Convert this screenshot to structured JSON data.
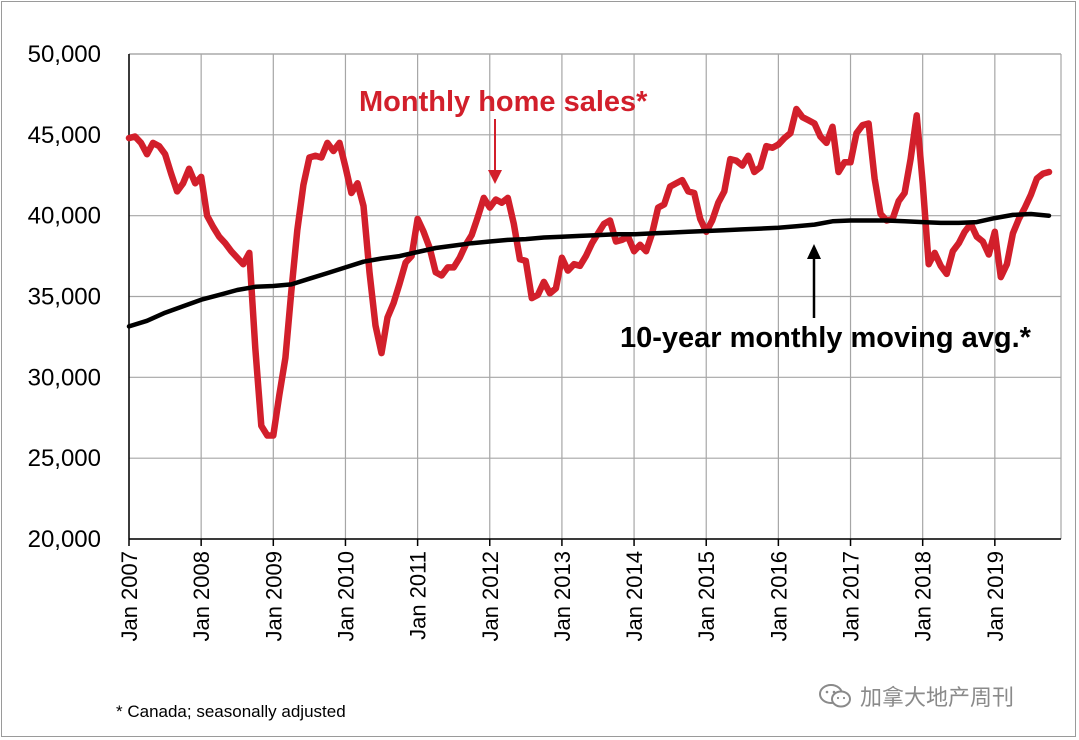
{
  "chart_data": {
    "type": "line",
    "title": "",
    "xlabel": "",
    "ylabel": "",
    "ylim": [
      20000,
      50000
    ],
    "yticks": [
      20000,
      25000,
      30000,
      35000,
      40000,
      45000,
      50000
    ],
    "ytick_labels": [
      "20,000",
      "25,000",
      "30,000",
      "35,000",
      "40,000",
      "45,000",
      "50,000"
    ],
    "xlim": [
      2007.0,
      2019.917
    ],
    "xticks": [
      2007,
      2008,
      2009,
      2010,
      2011,
      2012,
      2013,
      2014,
      2015,
      2016,
      2017,
      2018,
      2019
    ],
    "xtick_labels": [
      "Jan 2007",
      "Jan 2008",
      "Jan 2009",
      "Jan 2010",
      "Jan 2011",
      "Jan 2012",
      "Jan 2013",
      "Jan 2014",
      "Jan 2015",
      "Jan 2016",
      "Jan 2017",
      "Jan 2018",
      "Jan 2019"
    ],
    "grid": true,
    "annotations": {
      "sales": "Monthly home sales*",
      "average": "10-year monthly moving avg.*"
    },
    "footnote": "* Canada; seasonally adjusted",
    "colors": {
      "sales": "#d21f2b",
      "average": "#000000"
    },
    "series": [
      {
        "key": "sales",
        "color": "#d21f2b",
        "points": [
          [
            2007.0,
            44800
          ],
          [
            2007.083,
            44900
          ],
          [
            2007.167,
            44500
          ],
          [
            2007.25,
            43800
          ],
          [
            2007.333,
            44500
          ],
          [
            2007.417,
            44300
          ],
          [
            2007.5,
            43800
          ],
          [
            2007.583,
            42600
          ],
          [
            2007.667,
            41500
          ],
          [
            2007.75,
            42000
          ],
          [
            2007.833,
            42900
          ],
          [
            2007.917,
            42000
          ],
          [
            2008.0,
            42400
          ],
          [
            2008.083,
            40000
          ],
          [
            2008.167,
            39300
          ],
          [
            2008.25,
            38700
          ],
          [
            2008.333,
            38300
          ],
          [
            2008.417,
            37800
          ],
          [
            2008.5,
            37400
          ],
          [
            2008.583,
            37000
          ],
          [
            2008.667,
            37700
          ],
          [
            2008.75,
            31800
          ],
          [
            2008.833,
            27000
          ],
          [
            2008.917,
            26400
          ],
          [
            2009.0,
            26400
          ],
          [
            2009.083,
            28900
          ],
          [
            2009.167,
            31200
          ],
          [
            2009.25,
            35300
          ],
          [
            2009.333,
            39100
          ],
          [
            2009.417,
            41900
          ],
          [
            2009.5,
            43600
          ],
          [
            2009.583,
            43700
          ],
          [
            2009.667,
            43600
          ],
          [
            2009.75,
            44500
          ],
          [
            2009.833,
            44000
          ],
          [
            2009.917,
            44500
          ],
          [
            2010.0,
            43000
          ],
          [
            2010.083,
            41400
          ],
          [
            2010.167,
            42000
          ],
          [
            2010.25,
            40600
          ],
          [
            2010.333,
            36500
          ],
          [
            2010.417,
            33200
          ],
          [
            2010.5,
            31500
          ],
          [
            2010.583,
            33700
          ],
          [
            2010.667,
            34600
          ],
          [
            2010.75,
            35800
          ],
          [
            2010.833,
            37100
          ],
          [
            2010.917,
            37500
          ],
          [
            2011.0,
            39800
          ],
          [
            2011.083,
            39000
          ],
          [
            2011.167,
            38000
          ],
          [
            2011.25,
            36500
          ],
          [
            2011.333,
            36300
          ],
          [
            2011.417,
            36800
          ],
          [
            2011.5,
            36800
          ],
          [
            2011.583,
            37400
          ],
          [
            2011.667,
            38200
          ],
          [
            2011.75,
            38800
          ],
          [
            2011.833,
            39900
          ],
          [
            2011.917,
            41100
          ],
          [
            2012.0,
            40500
          ],
          [
            2012.083,
            41000
          ],
          [
            2012.167,
            40800
          ],
          [
            2012.25,
            41100
          ],
          [
            2012.333,
            39500
          ],
          [
            2012.417,
            37300
          ],
          [
            2012.5,
            37200
          ],
          [
            2012.583,
            34900
          ],
          [
            2012.667,
            35100
          ],
          [
            2012.75,
            35900
          ],
          [
            2012.833,
            35200
          ],
          [
            2012.917,
            35500
          ],
          [
            2013.0,
            37400
          ],
          [
            2013.083,
            36600
          ],
          [
            2013.167,
            37000
          ],
          [
            2013.25,
            36900
          ],
          [
            2013.333,
            37500
          ],
          [
            2013.417,
            38300
          ],
          [
            2013.5,
            38900
          ],
          [
            2013.583,
            39500
          ],
          [
            2013.667,
            39700
          ],
          [
            2013.75,
            38400
          ],
          [
            2013.833,
            38500
          ],
          [
            2013.917,
            38700
          ],
          [
            2014.0,
            37800
          ],
          [
            2014.083,
            38200
          ],
          [
            2014.167,
            37800
          ],
          [
            2014.25,
            38900
          ],
          [
            2014.333,
            40500
          ],
          [
            2014.417,
            40700
          ],
          [
            2014.5,
            41800
          ],
          [
            2014.583,
            42000
          ],
          [
            2014.667,
            42200
          ],
          [
            2014.75,
            41500
          ],
          [
            2014.833,
            41400
          ],
          [
            2014.917,
            39800
          ],
          [
            2015.0,
            39000
          ],
          [
            2015.083,
            39700
          ],
          [
            2015.167,
            40800
          ],
          [
            2015.25,
            41500
          ],
          [
            2015.333,
            43500
          ],
          [
            2015.417,
            43400
          ],
          [
            2015.5,
            43100
          ],
          [
            2015.583,
            43700
          ],
          [
            2015.667,
            42700
          ],
          [
            2015.75,
            43000
          ],
          [
            2015.833,
            44300
          ],
          [
            2015.917,
            44200
          ],
          [
            2016.0,
            44400
          ],
          [
            2016.083,
            44800
          ],
          [
            2016.167,
            45100
          ],
          [
            2016.25,
            46600
          ],
          [
            2016.333,
            46100
          ],
          [
            2016.417,
            45900
          ],
          [
            2016.5,
            45700
          ],
          [
            2016.583,
            44900
          ],
          [
            2016.667,
            44500
          ],
          [
            2016.75,
            45500
          ],
          [
            2016.833,
            42700
          ],
          [
            2016.917,
            43300
          ],
          [
            2017.0,
            43300
          ],
          [
            2017.083,
            45100
          ],
          [
            2017.167,
            45600
          ],
          [
            2017.25,
            45700
          ],
          [
            2017.333,
            42300
          ],
          [
            2017.417,
            40100
          ],
          [
            2017.5,
            39700
          ],
          [
            2017.583,
            39800
          ],
          [
            2017.667,
            40900
          ],
          [
            2017.75,
            41400
          ],
          [
            2017.833,
            43500
          ],
          [
            2017.917,
            46200
          ],
          [
            2018.0,
            42000
          ],
          [
            2018.083,
            37000
          ],
          [
            2018.167,
            37700
          ],
          [
            2018.25,
            36900
          ],
          [
            2018.333,
            36400
          ],
          [
            2018.417,
            37800
          ],
          [
            2018.5,
            38300
          ],
          [
            2018.583,
            39000
          ],
          [
            2018.667,
            39500
          ],
          [
            2018.75,
            38700
          ],
          [
            2018.833,
            38400
          ],
          [
            2018.917,
            37600
          ],
          [
            2019.0,
            39000
          ],
          [
            2019.083,
            36200
          ],
          [
            2019.167,
            37000
          ],
          [
            2019.25,
            38900
          ],
          [
            2019.333,
            39800
          ],
          [
            2019.417,
            40500
          ],
          [
            2019.5,
            41300
          ],
          [
            2019.583,
            42300
          ],
          [
            2019.667,
            42600
          ],
          [
            2019.75,
            42700
          ]
        ]
      },
      {
        "key": "average",
        "color": "#000000",
        "points": [
          [
            2007.0,
            33150
          ],
          [
            2007.25,
            33500
          ],
          [
            2007.5,
            34000
          ],
          [
            2007.75,
            34400
          ],
          [
            2008.0,
            34800
          ],
          [
            2008.25,
            35100
          ],
          [
            2008.5,
            35400
          ],
          [
            2008.75,
            35600
          ],
          [
            2009.0,
            35650
          ],
          [
            2009.25,
            35750
          ],
          [
            2009.5,
            36100
          ],
          [
            2009.75,
            36450
          ],
          [
            2010.0,
            36800
          ],
          [
            2010.25,
            37150
          ],
          [
            2010.5,
            37350
          ],
          [
            2010.75,
            37500
          ],
          [
            2011.0,
            37750
          ],
          [
            2011.25,
            38000
          ],
          [
            2011.5,
            38150
          ],
          [
            2011.75,
            38300
          ],
          [
            2012.0,
            38400
          ],
          [
            2012.25,
            38500
          ],
          [
            2012.5,
            38550
          ],
          [
            2012.75,
            38650
          ],
          [
            2013.0,
            38700
          ],
          [
            2013.25,
            38750
          ],
          [
            2013.5,
            38800
          ],
          [
            2013.75,
            38850
          ],
          [
            2014.0,
            38850
          ],
          [
            2014.25,
            38900
          ],
          [
            2014.5,
            38950
          ],
          [
            2014.75,
            39000
          ],
          [
            2015.0,
            39050
          ],
          [
            2015.25,
            39100
          ],
          [
            2015.5,
            39150
          ],
          [
            2015.75,
            39200
          ],
          [
            2016.0,
            39250
          ],
          [
            2016.25,
            39350
          ],
          [
            2016.5,
            39450
          ],
          [
            2016.75,
            39650
          ],
          [
            2017.0,
            39700
          ],
          [
            2017.25,
            39700
          ],
          [
            2017.5,
            39700
          ],
          [
            2017.75,
            39650
          ],
          [
            2018.0,
            39600
          ],
          [
            2018.25,
            39550
          ],
          [
            2018.5,
            39550
          ],
          [
            2018.75,
            39600
          ],
          [
            2019.0,
            39850
          ],
          [
            2019.25,
            40050
          ],
          [
            2019.5,
            40100
          ],
          [
            2019.75,
            40000
          ]
        ]
      }
    ]
  },
  "watermark": {
    "text": "加拿大地产周刊",
    "icon": "wechat-icon"
  }
}
